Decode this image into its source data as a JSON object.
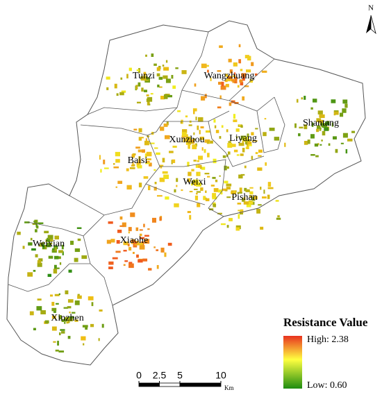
{
  "north_label": "N",
  "regions": [
    "Tunzi",
    "Wangzhuang",
    "Shantang",
    "Xunzhou",
    "Liyang",
    "Baisi",
    "Weixi",
    "Pishan",
    "Xiaohe",
    "Weixian",
    "Xinzhen"
  ],
  "legend": {
    "title": "Resistance Value",
    "high_label": "High: 2.38",
    "low_label": "Low: 0.60"
  },
  "scale_bar": {
    "ticks": [
      0,
      2.5,
      5,
      10
    ],
    "unit": "Km"
  }
}
